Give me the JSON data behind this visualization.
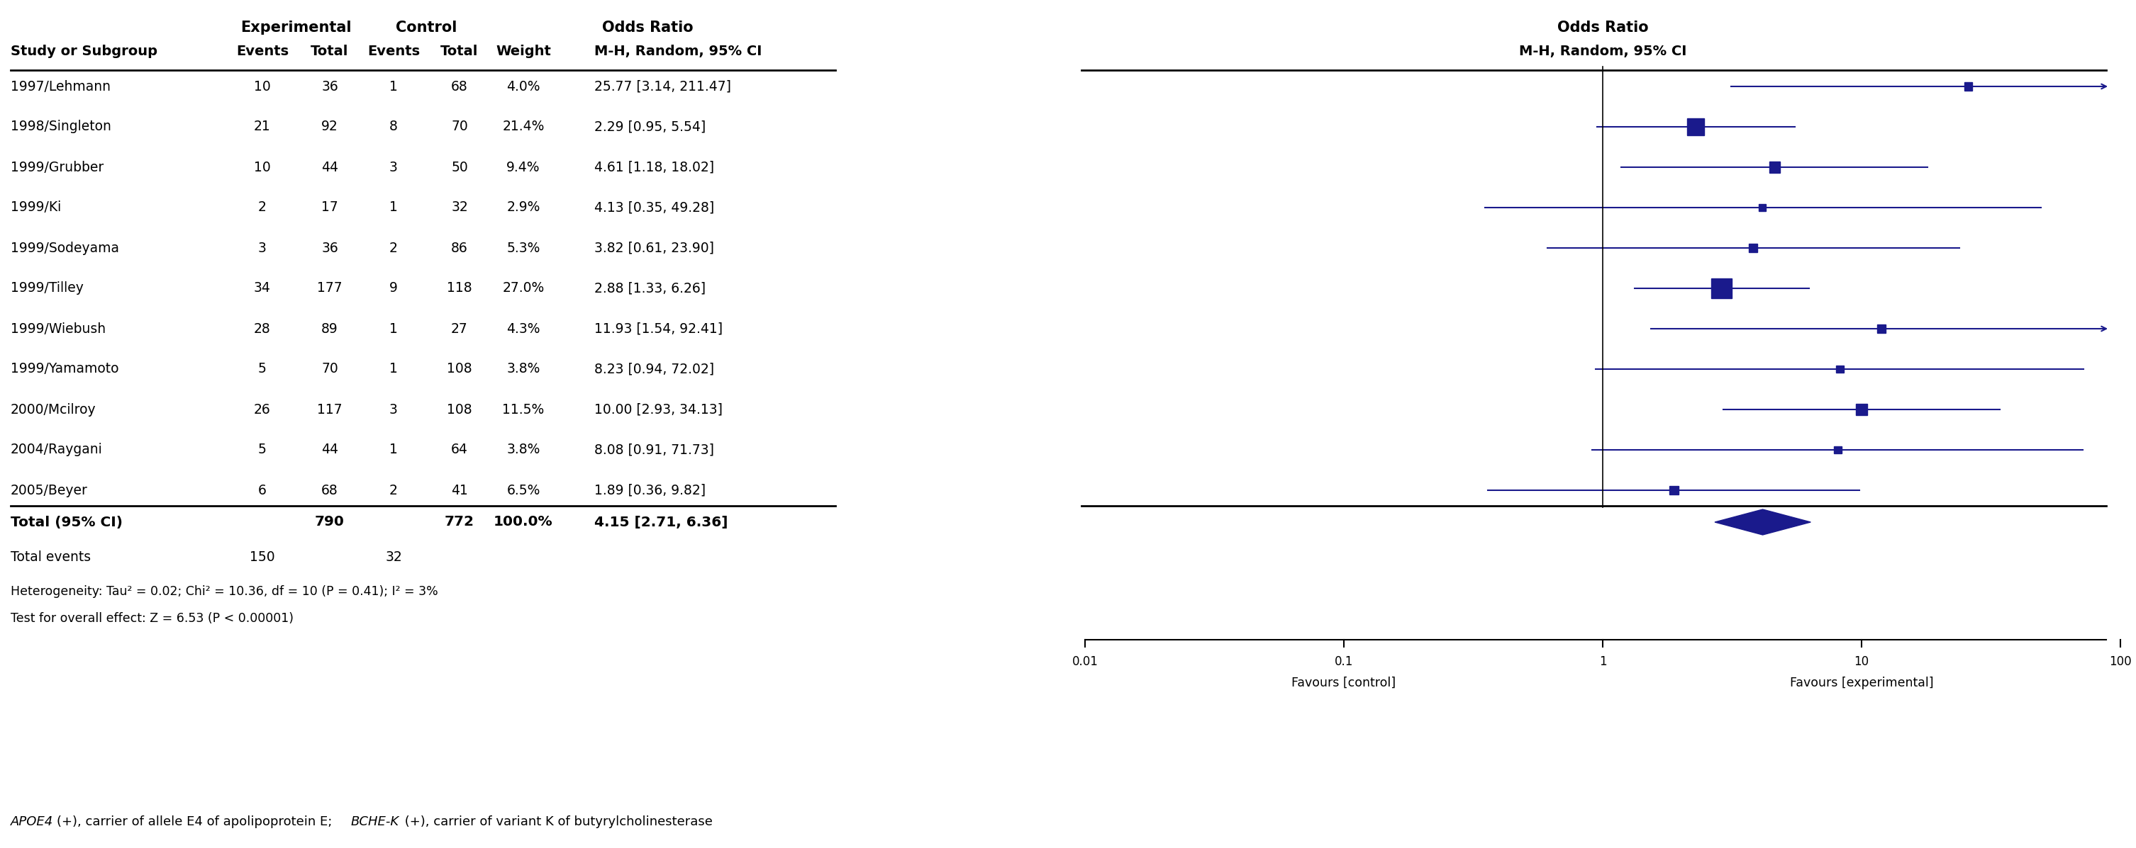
{
  "studies": [
    {
      "name": "1997/Lehmann",
      "exp_events": 10,
      "exp_total": 36,
      "ctrl_events": 1,
      "ctrl_total": 68,
      "weight": 4.0,
      "weight_str": "4.0%",
      "or": 25.77,
      "ci_low": 3.14,
      "ci_high": 211.47,
      "or_str": "25.77 [3.14, 211.47]"
    },
    {
      "name": "1998/Singleton",
      "exp_events": 21,
      "exp_total": 92,
      "ctrl_events": 8,
      "ctrl_total": 70,
      "weight": 21.4,
      "weight_str": "21.4%",
      "or": 2.29,
      "ci_low": 0.95,
      "ci_high": 5.54,
      "or_str": "2.29 [0.95, 5.54]"
    },
    {
      "name": "1999/Grubber",
      "exp_events": 10,
      "exp_total": 44,
      "ctrl_events": 3,
      "ctrl_total": 50,
      "weight": 9.4,
      "weight_str": "9.4%",
      "or": 4.61,
      "ci_low": 1.18,
      "ci_high": 18.02,
      "or_str": "4.61 [1.18, 18.02]"
    },
    {
      "name": "1999/Ki",
      "exp_events": 2,
      "exp_total": 17,
      "ctrl_events": 1,
      "ctrl_total": 32,
      "weight": 2.9,
      "weight_str": "2.9%",
      "or": 4.13,
      "ci_low": 0.35,
      "ci_high": 49.28,
      "or_str": "4.13 [0.35, 49.28]"
    },
    {
      "name": "1999/Sodeyama",
      "exp_events": 3,
      "exp_total": 36,
      "ctrl_events": 2,
      "ctrl_total": 86,
      "weight": 5.3,
      "weight_str": "5.3%",
      "or": 3.82,
      "ci_low": 0.61,
      "ci_high": 23.9,
      "or_str": "3.82 [0.61, 23.90]"
    },
    {
      "name": "1999/Tilley",
      "exp_events": 34,
      "exp_total": 177,
      "ctrl_events": 9,
      "ctrl_total": 118,
      "weight": 27.0,
      "weight_str": "27.0%",
      "or": 2.88,
      "ci_low": 1.33,
      "ci_high": 6.26,
      "or_str": "2.88 [1.33, 6.26]"
    },
    {
      "name": "1999/Wiebush",
      "exp_events": 28,
      "exp_total": 89,
      "ctrl_events": 1,
      "ctrl_total": 27,
      "weight": 4.3,
      "weight_str": "4.3%",
      "or": 11.93,
      "ci_low": 1.54,
      "ci_high": 92.41,
      "or_str": "11.93 [1.54, 92.41]"
    },
    {
      "name": "1999/Yamamoto",
      "exp_events": 5,
      "exp_total": 70,
      "ctrl_events": 1,
      "ctrl_total": 108,
      "weight": 3.8,
      "weight_str": "3.8%",
      "or": 8.23,
      "ci_low": 0.94,
      "ci_high": 72.02,
      "or_str": "8.23 [0.94, 72.02]"
    },
    {
      "name": "2000/Mcilroy",
      "exp_events": 26,
      "exp_total": 117,
      "ctrl_events": 3,
      "ctrl_total": 108,
      "weight": 11.5,
      "weight_str": "11.5%",
      "or": 10.0,
      "ci_low": 2.93,
      "ci_high": 34.13,
      "or_str": "10.00 [2.93, 34.13]"
    },
    {
      "name": "2004/Raygani",
      "exp_events": 5,
      "exp_total": 44,
      "ctrl_events": 1,
      "ctrl_total": 64,
      "weight": 3.8,
      "weight_str": "3.8%",
      "or": 8.08,
      "ci_low": 0.91,
      "ci_high": 71.73,
      "or_str": "8.08 [0.91, 71.73]"
    },
    {
      "name": "2005/Beyer",
      "exp_events": 6,
      "exp_total": 68,
      "ctrl_events": 2,
      "ctrl_total": 41,
      "weight": 6.5,
      "weight_str": "6.5%",
      "or": 1.89,
      "ci_low": 0.36,
      "ci_high": 9.82,
      "or_str": "1.89 [0.36, 9.82]"
    }
  ],
  "total_or": 4.15,
  "total_ci_low": 2.71,
  "total_ci_high": 6.36,
  "total_exp_total": 790,
  "total_ctrl_total": 772,
  "total_weight": "100.0%",
  "total_or_str": "4.15 [2.71, 6.36]",
  "total_exp_events": 150,
  "total_ctrl_events": 32,
  "heterogeneity_text": "Heterogeneity: Tau² = 0.02; Chi² = 10.36, df = 10 (P = 0.41); I² = 3%",
  "overall_effect_text": "Test for overall effect: Z = 6.53 (P < 0.00001)",
  "footnote_italic": "APOE4",
  "footnote_normal1": "(+), carrier of allele E4 of apolipoprotein E; ",
  "footnote_italic2": "BCHE-K",
  "footnote_normal2": " (+), carrier of variant K of butyrylcholinesterase",
  "xaxis_label_left": "Favours [control]",
  "xaxis_label_right": "Favours [experimental]",
  "marker_color": "#1a1a8c",
  "diamond_color": "#1a1a8c",
  "bg_color": "white",
  "log_min": -2,
  "log_max": 2
}
